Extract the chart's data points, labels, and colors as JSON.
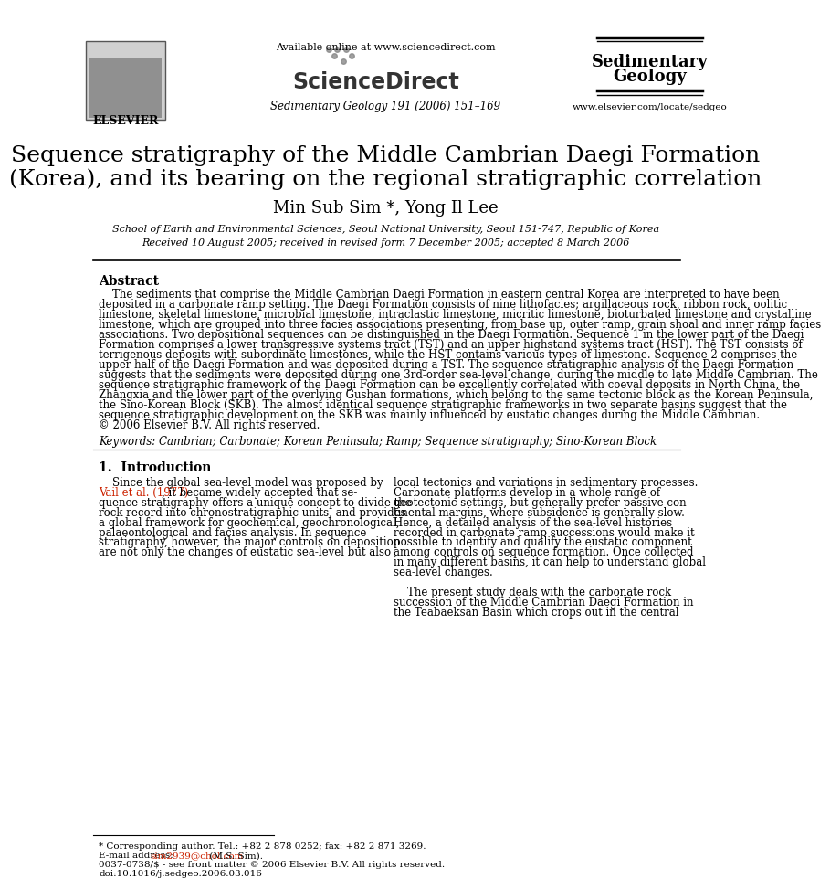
{
  "bg_color": "#ffffff",
  "header": {
    "available_online": "Available online at www.sciencedirect.com",
    "journal_info": "Sedimentary Geology 191 (2006) 151–169",
    "journal_name_line1": "Sedimentary",
    "journal_name_line2": "Geology",
    "elsevier_label": "ELSEVIER",
    "url": "www.elsevier.com/locate/sedgeo",
    "sciencedirect": "ScienceDirect"
  },
  "title_line1": "Sequence stratigraphy of the Middle Cambrian Daegi Formation",
  "title_line2": "(Korea), and its bearing on the regional stratigraphic correlation",
  "authors": "Min Sub Sim *, Yong Il Lee",
  "affiliation": "School of Earth and Environmental Sciences, Seoul National University, Seoul 151-747, Republic of Korea",
  "received": "Received 10 August 2005; received in revised form 7 December 2005; accepted 8 March 2006",
  "abstract_title": "Abstract",
  "abstract_lines": [
    "    The sediments that comprise the Middle Cambrian Daegi Formation in eastern central Korea are interpreted to have been",
    "deposited in a carbonate ramp setting. The Daegi Formation consists of nine lithofacies; argillaceous rock, ribbon rock, oolitic",
    "limestone, skeletal limestone, microbial limestone, intraclastic limestone, micritic limestone, bioturbated limestone and crystalline",
    "limestone, which are grouped into three facies associations presenting, from base up, outer ramp, grain shoal and inner ramp facies",
    "associations. Two depositional sequences can be distinguished in the Daegi Formation. Sequence 1 in the lower part of the Daegi",
    "Formation comprises a lower transgressive systems tract (TST) and an upper highstand systems tract (HST). The TST consists of",
    "terrigenous deposits with subordinate limestones, while the HST contains various types of limestone. Sequence 2 comprises the",
    "upper half of the Daegi Formation and was deposited during a TST. The sequence stratigraphic analysis of the Daegi Formation",
    "suggests that the sediments were deposited during one 3rd-order sea-level change, during the middle to late Middle Cambrian. The",
    "sequence stratigraphic framework of the Daegi Formation can be excellently correlated with coeval deposits in North China, the",
    "Zhangxia and the lower part of the overlying Gushan formations, which belong to the same tectonic block as the Korean Peninsula,",
    "the Sino-Korean Block (SKB). The almost identical sequence stratigraphic frameworks in two separate basins suggest that the",
    "sequence stratigraphic development on the SKB was mainly influenced by eustatic changes during the Middle Cambrian.",
    "© 2006 Elsevier B.V. All rights reserved."
  ],
  "keywords": "Keywords: Cambrian; Carbonate; Korean Peninsula; Ramp; Sequence stratigraphy; Sino-Korean Block",
  "section1_title": "1.  Introduction",
  "col1_lines": [
    "    Since the global sea-level model was proposed by",
    "Vail et al. (1977), it became widely accepted that se-",
    "quence stratigraphy offers a unique concept to divide the",
    "rock record into chronostratigraphic units, and provides",
    "a global framework for geochemical, geochronological,",
    "palaeontological and facies analysis. In sequence",
    "stratigraphy, however, the major controls on deposition",
    "are not only the changes of eustatic sea-level but also"
  ],
  "col1_link_line": 1,
  "col2_lines": [
    "local tectonics and variations in sedimentary processes.",
    "Carbonate platforms develop in a whole range of",
    "geotectonic settings, but generally prefer passive con-",
    "tinental margins, where subsidence is generally slow.",
    "Hence, a detailed analysis of the sea-level histories",
    "recorded in carbonate ramp successions would make it",
    "possible to identify and qualify the eustatic component",
    "among controls on sequence formation. Once collected",
    "in many different basins, it can help to understand global",
    "sea-level changes.",
    "",
    "    The present study deals with the carbonate rock",
    "succession of the Middle Cambrian Daegi Formation in",
    "the Teabaeksan Basin which crops out in the central"
  ],
  "footnote_line": 1175,
  "footnotes": [
    "* Corresponding author. Tel.: +82 2 878 0252; fax: +82 2 871 3269.",
    "E-mail address: sim2939@chol.com (M.S. Sim).",
    "0037-0738/$ - see front matter © 2006 Elsevier B.V. All rights reserved.",
    "doi:10.1016/j.sedgeo.2006.03.016"
  ],
  "line_color": "#000000",
  "text_color": "#000000",
  "gray_color": "#888888",
  "logo_bg": "#d0d0d0",
  "logo_edge": "#555555",
  "journal_name_color": "#000000",
  "sciencedirect_color": "#333333",
  "link_color": "#cc2200"
}
